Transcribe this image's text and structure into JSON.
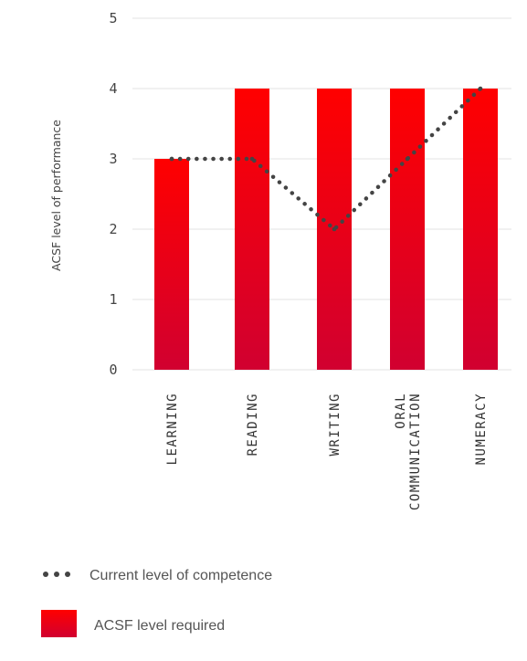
{
  "chart_data": {
    "type": "bar",
    "categories": [
      [
        "LEARNING"
      ],
      [
        "READING"
      ],
      [
        "WRITING"
      ],
      [
        "ORAL",
        "COMMUNICATION"
      ],
      [
        "NUMERACY"
      ]
    ],
    "ylabel": "ACSF level of performance",
    "ylim": [
      0,
      5
    ],
    "yticks": [
      0,
      1,
      2,
      3,
      4,
      5
    ],
    "grid": true,
    "series": [
      {
        "name": "ACSF level required",
        "type": "bar",
        "values": [
          3,
          4,
          4,
          4,
          4
        ],
        "color_top": "#ff0000",
        "color_bottom": "#d10030"
      },
      {
        "name": "Current level of competence",
        "type": "line",
        "style": "dotted",
        "values": [
          3,
          3,
          2,
          3,
          4
        ],
        "color": "#444444"
      }
    ],
    "legend": {
      "position": "bottom-left",
      "items": [
        {
          "label": "Current level of competence",
          "marker": "dots"
        },
        {
          "label": "ACSF level required",
          "marker": "red-square"
        }
      ]
    }
  }
}
